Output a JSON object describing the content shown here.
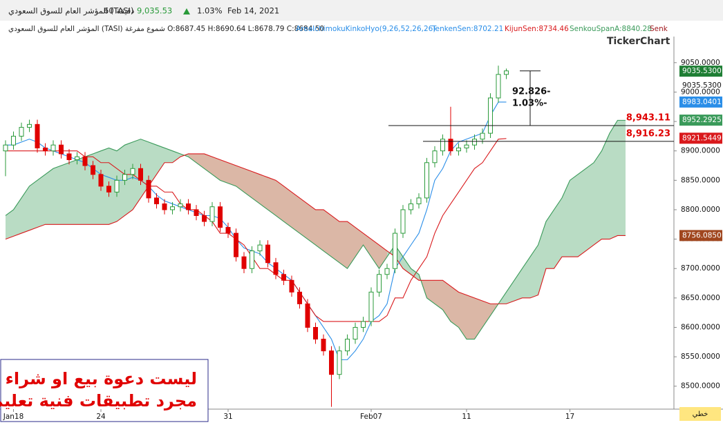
{
  "header": {
    "name": "المؤشر العام للسوق السعودي (TASI)",
    "interval": "60 دقيقة",
    "last": "9,035.53",
    "change": "1.03%",
    "date": "Feb 14, 2021"
  },
  "info": {
    "symbol": "المؤشر العام للسوق السعودي (TASI) شموع مفرغة O:8687.45 H:8690.64 L:8678.79 C:8684.50",
    "indicator": "AreaIchimokuKinkoHyo(9,26,52,26,26)",
    "tenkan": "TenkenSen:8702.21",
    "kijun": "KijunSen:8734.46",
    "span_a": "SenkouSpanA:8840.28",
    "span_b": "Senk"
  },
  "logo": "TickerChart",
  "mode_label": "خطي",
  "disclaimer": [
    "ليست دعوة بيع او شراء",
    "مجرد تطبيقات فنية تعليمية"
  ],
  "chart_data": {
    "type": "candlestick",
    "categories": [
      null,
      "Jan18",
      null,
      null,
      null,
      null,
      null,
      null,
      null,
      null,
      null,
      null,
      "24",
      null,
      null,
      null,
      null,
      null,
      null,
      null,
      null,
      null,
      null,
      null,
      null,
      null,
      null,
      null,
      "31",
      null,
      null,
      null,
      null,
      null,
      null,
      null,
      null,
      null,
      null,
      null,
      null,
      null,
      null,
      null,
      null,
      null,
      "Feb07",
      null,
      null,
      null,
      null,
      null,
      null,
      null,
      null,
      null,
      null,
      null,
      "11",
      null,
      null,
      null,
      null,
      null,
      null,
      null,
      null,
      null,
      null,
      null,
      null,
      "17",
      null,
      null,
      null,
      null,
      null,
      null,
      null
    ],
    "open": [
      8900,
      8910,
      8925,
      8940,
      8945,
      8905,
      8900,
      8910,
      8895,
      8885,
      8890,
      8875,
      8860,
      8840,
      8830,
      8850,
      8860,
      8870,
      8850,
      8820,
      8810,
      8800,
      8805,
      8810,
      8800,
      8790,
      8780,
      8805,
      8770,
      8760,
      8720,
      8700,
      8730,
      8740,
      8710,
      8690,
      8680,
      8660,
      8640,
      8600,
      8580,
      8560,
      8520,
      8560,
      8580,
      8600,
      8610,
      8660,
      8690,
      8700,
      8760,
      8800,
      8810,
      8820,
      8880,
      8900,
      8920,
      8900,
      8905,
      8910,
      8920,
      8930,
      8990,
      9030,
      null,
      null,
      null,
      null,
      null,
      null,
      null,
      null,
      null,
      null,
      null,
      null,
      null,
      null,
      null
    ],
    "high": [
      8918,
      8933,
      8948,
      8953,
      8953,
      8913,
      8918,
      8918,
      8903,
      8898,
      8898,
      8883,
      8868,
      8848,
      8858,
      8868,
      8878,
      8878,
      8858,
      8828,
      8818,
      8813,
      8818,
      8818,
      8808,
      8798,
      8813,
      8813,
      8778,
      8768,
      8728,
      8738,
      8748,
      8748,
      8718,
      8698,
      8688,
      8668,
      8648,
      8608,
      8588,
      8568,
      8568,
      8588,
      8608,
      8618,
      8668,
      8698,
      8708,
      8768,
      8808,
      8818,
      8828,
      8888,
      8908,
      8928,
      8975,
      8913,
      8918,
      8928,
      8938,
      8998,
      9045,
      9040,
      null,
      null,
      null,
      null,
      null,
      null,
      null,
      null,
      null,
      null,
      null,
      null,
      null,
      null,
      null
    ],
    "low": [
      8857,
      8902,
      8917,
      8932,
      8897,
      8892,
      8892,
      8887,
      8877,
      8877,
      8867,
      8852,
      8832,
      8822,
      8822,
      8842,
      8852,
      8842,
      8812,
      8802,
      8792,
      8792,
      8797,
      8792,
      8782,
      8772,
      8772,
      8762,
      8752,
      8712,
      8692,
      8692,
      8722,
      8702,
      8682,
      8672,
      8652,
      8632,
      8592,
      8572,
      8552,
      8465,
      8512,
      8552,
      8572,
      8592,
      8602,
      8652,
      8682,
      8692,
      8752,
      8792,
      8802,
      8812,
      8872,
      8892,
      8892,
      8892,
      8897,
      8902,
      8912,
      8922,
      8982,
      9022,
      null,
      null,
      null,
      null,
      null,
      null,
      null,
      null,
      null,
      null,
      null,
      null,
      null,
      null,
      null
    ],
    "close": [
      8910,
      8925,
      8940,
      8945,
      8905,
      8900,
      8910,
      8895,
      8885,
      8890,
      8875,
      8860,
      8840,
      8830,
      8850,
      8860,
      8870,
      8850,
      8820,
      8810,
      8800,
      8805,
      8810,
      8800,
      8790,
      8780,
      8805,
      8770,
      8760,
      8720,
      8700,
      8730,
      8740,
      8710,
      8690,
      8680,
      8660,
      8640,
      8600,
      8580,
      8560,
      8520,
      8560,
      8580,
      8600,
      8610,
      8660,
      8690,
      8700,
      8760,
      8800,
      8810,
      8820,
      8880,
      8900,
      8920,
      8900,
      8905,
      8910,
      8920,
      8930,
      8990,
      9030,
      9036,
      null,
      null,
      null,
      null,
      null,
      null,
      null,
      null,
      null,
      null,
      null,
      null,
      null,
      null,
      null
    ],
    "up_color": "#2a9a3a",
    "down_color": "#e00000",
    "series": [
      {
        "name": "TenkenSen",
        "color": "#2a8ee8",
        "values": [
          8910,
          8910,
          8915,
          8920,
          8915,
          8905,
          8900,
          8895,
          8890,
          8885,
          8880,
          8870,
          8860,
          8855,
          8850,
          8850,
          8855,
          8850,
          8840,
          8825,
          8815,
          8810,
          8805,
          8800,
          8795,
          8790,
          8790,
          8785,
          8770,
          8750,
          8735,
          8730,
          8725,
          8710,
          8700,
          8690,
          8680,
          8660,
          8640,
          8620,
          8600,
          8580,
          8545,
          8545,
          8560,
          8580,
          8610,
          8620,
          8640,
          8700,
          8720,
          8740,
          8760,
          8800,
          8850,
          8870,
          8900,
          8915,
          8920,
          8925,
          8930,
          8960,
          8983,
          8983,
          null,
          null,
          null,
          null,
          null,
          null,
          null,
          null,
          null,
          null,
          null,
          null,
          null,
          null,
          null
        ]
      },
      {
        "name": "KijunSen",
        "color": "#d9191c",
        "values": [
          8900,
          8900,
          8900,
          8900,
          8900,
          8900,
          8900,
          8900,
          8900,
          8900,
          8890,
          8890,
          8880,
          8880,
          8870,
          8860,
          8860,
          8850,
          8840,
          8840,
          8830,
          8830,
          8810,
          8800,
          8800,
          8790,
          8780,
          8760,
          8760,
          8750,
          8740,
          8720,
          8700,
          8700,
          8690,
          8680,
          8680,
          8660,
          8640,
          8620,
          8610,
          8610,
          8610,
          8610,
          8610,
          8610,
          8610,
          8610,
          8620,
          8650,
          8650,
          8680,
          8700,
          8720,
          8760,
          8790,
          8810,
          8830,
          8850,
          8870,
          8880,
          8900,
          8920,
          8921,
          null,
          null,
          null,
          null,
          null,
          null,
          null,
          null,
          null,
          null,
          null,
          null,
          null,
          null,
          null
        ]
      },
      {
        "name": "SenkouSpanA",
        "color": "#3a9a5a",
        "values": [
          8790,
          8800,
          8820,
          8840,
          8850,
          8860,
          8870,
          8875,
          8880,
          8885,
          8890,
          8895,
          8900,
          8905,
          8900,
          8910,
          8915,
          8920,
          8915,
          8910,
          8905,
          8900,
          8895,
          8890,
          8880,
          8870,
          8860,
          8850,
          8845,
          8840,
          8830,
          8820,
          8810,
          8800,
          8790,
          8780,
          8770,
          8760,
          8750,
          8740,
          8730,
          8720,
          8710,
          8700,
          8720,
          8740,
          8720,
          8700,
          8720,
          8740,
          8720,
          8700,
          8690,
          8650,
          8640,
          8630,
          8610,
          8600,
          8580,
          8580,
          8600,
          8620,
          8640,
          8660,
          8680,
          8700,
          8720,
          8740,
          8780,
          8800,
          8820,
          8850,
          8860,
          8870,
          8880,
          8900,
          8930,
          8952,
          8952
        ]
      },
      {
        "name": "SenkouSpanB",
        "color": "#d9191c",
        "values": [
          8750,
          8755,
          8760,
          8765,
          8770,
          8775,
          8775,
          8775,
          8775,
          8775,
          8775,
          8775,
          8775,
          8775,
          8780,
          8790,
          8800,
          8820,
          8840,
          8860,
          8880,
          8880,
          8890,
          8895,
          8895,
          8895,
          8890,
          8885,
          8880,
          8875,
          8870,
          8865,
          8860,
          8855,
          8850,
          8840,
          8830,
          8820,
          8810,
          8800,
          8800,
          8790,
          8780,
          8780,
          8770,
          8760,
          8750,
          8740,
          8730,
          8720,
          8700,
          8690,
          8680,
          8680,
          8680,
          8680,
          8670,
          8660,
          8655,
          8650,
          8645,
          8640,
          8640,
          8640,
          8645,
          8650,
          8650,
          8655,
          8700,
          8700,
          8720,
          8720,
          8720,
          8730,
          8740,
          8750,
          8750,
          8756,
          8756
        ]
      }
    ],
    "cloud_up_color": "#b9dcc4",
    "cloud_down_color": "#dbb7a6",
    "ylim": [
      8461,
      9092
    ],
    "yticks": [
      {
        "value": 8500,
        "label": "8500.0000"
      },
      {
        "value": 8550,
        "label": "8550.0000"
      },
      {
        "value": 8600,
        "label": "8600.0000"
      },
      {
        "value": 8650,
        "label": "8650.0000"
      },
      {
        "value": 8700,
        "label": "8700.0000"
      },
      {
        "value": 8750,
        "label": "8750.0000"
      },
      {
        "value": 8800,
        "label": "8800.0000"
      },
      {
        "value": 8850,
        "label": "8850.0000"
      },
      {
        "value": 8900,
        "label": "8900.0000"
      },
      {
        "value": 8950,
        "label": "8950.0000"
      },
      {
        "value": 9000,
        "label": "9000.0000"
      },
      {
        "value": 9050,
        "label": "9050.0000"
      }
    ],
    "price_labels": [
      {
        "value": 9035.53,
        "label": "9035.5300",
        "color": "#1e7e34"
      },
      {
        "value": 9035.53,
        "label": "9035.5300"
      },
      {
        "value": 8983.0401,
        "label": "8983.0401",
        "color": "#2a8ee8"
      },
      {
        "value": 8952.2925,
        "label": "8952.2925",
        "color": "#3a9a5a"
      },
      {
        "value": 8921.5449,
        "label": "8921.5449",
        "color": "#d9191c"
      },
      {
        "value": 8756.085,
        "label": "8756.0850",
        "color": "#a0461e"
      }
    ],
    "levels": [
      {
        "value": 8943.11,
        "label": "8,943.11"
      },
      {
        "value": 8916.23,
        "label": "8,916.23"
      }
    ],
    "measure": {
      "from": 8943.11,
      "to": 9035.936,
      "change_label": "92.826-",
      "percent_label": "1.03%-"
    }
  }
}
